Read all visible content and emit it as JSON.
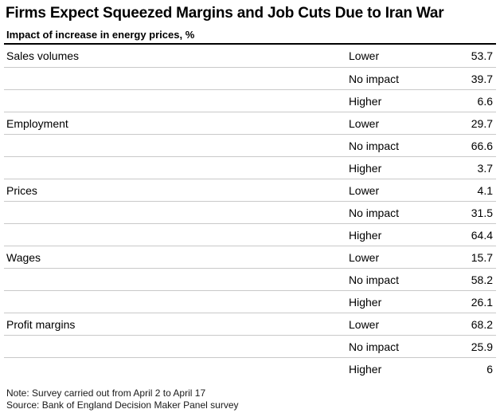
{
  "header": {
    "title": "Firms Expect Squeezed Margins and Job Cuts Due to Iran War",
    "subtitle": "Impact of increase in energy prices, %"
  },
  "table": {
    "groups": [
      {
        "category": "Sales volumes",
        "rows": [
          {
            "label": "Lower",
            "value": "53.7"
          },
          {
            "label": "No impact",
            "value": "39.7"
          },
          {
            "label": "Higher",
            "value": "6.6"
          }
        ]
      },
      {
        "category": "Employment",
        "rows": [
          {
            "label": "Lower",
            "value": "29.7"
          },
          {
            "label": "No impact",
            "value": "66.6"
          },
          {
            "label": "Higher",
            "value": "3.7"
          }
        ]
      },
      {
        "category": "Prices",
        "rows": [
          {
            "label": "Lower",
            "value": "4.1"
          },
          {
            "label": "No impact",
            "value": "31.5"
          },
          {
            "label": "Higher",
            "value": "64.4"
          }
        ]
      },
      {
        "category": "Wages",
        "rows": [
          {
            "label": "Lower",
            "value": "15.7"
          },
          {
            "label": "No impact",
            "value": "58.2"
          },
          {
            "label": "Higher",
            "value": "26.1"
          }
        ]
      },
      {
        "category": "Profit margins",
        "rows": [
          {
            "label": "Lower",
            "value": "68.2"
          },
          {
            "label": "No impact",
            "value": "25.9"
          },
          {
            "label": "Higher",
            "value": "6"
          }
        ]
      }
    ]
  },
  "footer": {
    "note": "Note: Survey carried out from April 2 to April 17",
    "source": "Source: Bank of England Decision Maker Panel survey"
  },
  "colors": {
    "text": "#000000",
    "separator": "#c9c9c9",
    "header_rule": "#000000",
    "background": "#ffffff"
  },
  "chart_data": {
    "type": "table",
    "title": "Firms Expect Squeezed Margins and Job Cuts Due to Iran War",
    "subtitle": "Impact of increase in energy prices, %",
    "categories": [
      "Sales volumes",
      "Employment",
      "Prices",
      "Wages",
      "Profit margins"
    ],
    "series": [
      {
        "name": "Lower",
        "values": [
          53.7,
          29.7,
          4.1,
          15.7,
          68.2
        ]
      },
      {
        "name": "No impact",
        "values": [
          39.7,
          66.6,
          31.5,
          58.2,
          25.9
        ]
      },
      {
        "name": "Higher",
        "values": [
          6.6,
          3.7,
          64.4,
          26.1,
          6
        ]
      }
    ],
    "value_unit": "%",
    "grid": "horizontal-separators",
    "legend_position": "none",
    "note": "Note: Survey carried out from April 2 to April 17",
    "source": "Source: Bank of England Decision Maker Panel survey"
  }
}
